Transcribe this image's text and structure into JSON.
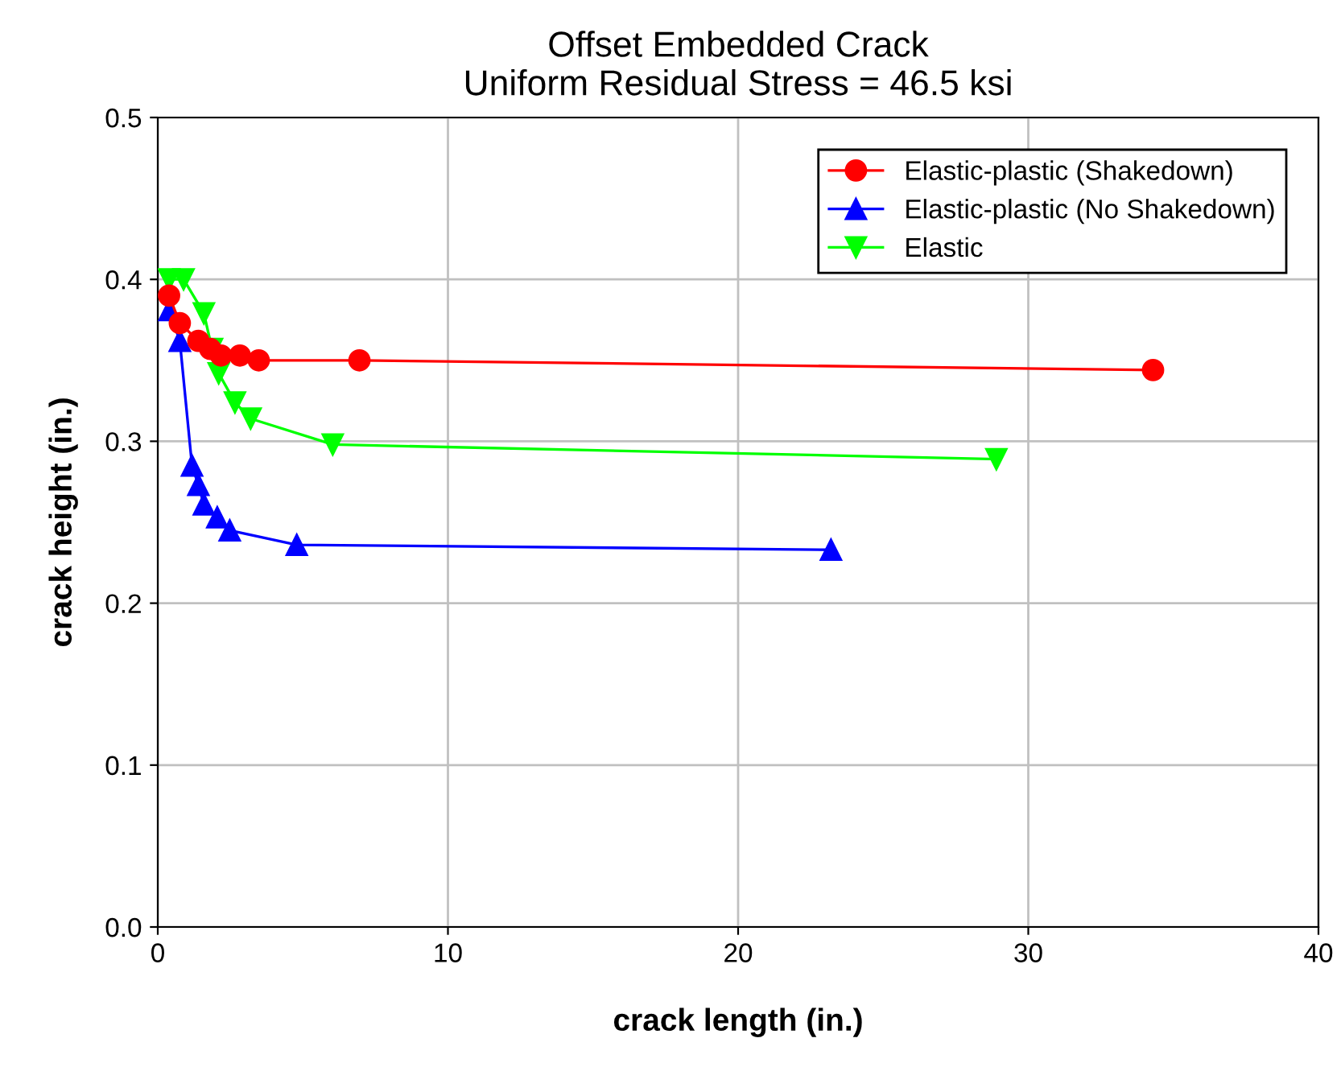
{
  "chart_data": {
    "type": "line",
    "title": "Offset Embedded Crack\nUniform Residual Stress = 46.5 ksi",
    "xlabel": "crack length (in.)",
    "ylabel": "crack height (in.)",
    "xlim": [
      0,
      40
    ],
    "xticks": [
      0,
      10,
      20,
      30,
      40
    ],
    "ylim": [
      0,
      0.5
    ],
    "yticks": [
      {
        "value": 0,
        "label": "0.0"
      },
      0.1,
      0.2,
      0.3,
      0.4,
      0.5
    ],
    "grid": true,
    "legend": "top right",
    "line_style": "solid",
    "series": [
      {
        "name": "Elastic-plastic (Shakedown)",
        "color": "#ff0000",
        "marker": "circle",
        "x": [
          0.39,
          0.76,
          1.4,
          1.81,
          2.18,
          2.83,
          3.48,
          6.95,
          34.3
        ],
        "values": [
          0.39,
          0.373,
          0.362,
          0.357,
          0.353,
          0.353,
          0.35,
          0.35,
          0.344
        ]
      },
      {
        "name": "Elastic-plastic (No Shakedown)",
        "color": "#0000ff",
        "marker": "triangle",
        "x": [
          0.4,
          0.76,
          1.18,
          1.4,
          1.59,
          2.05,
          2.48,
          4.79,
          23.2
        ],
        "values": [
          0.381,
          0.362,
          0.285,
          0.273,
          0.261,
          0.253,
          0.245,
          0.236,
          0.233
        ]
      },
      {
        "name": "Elastic",
        "color": "#00ff00",
        "marker": "triangle_down",
        "x": [
          0.39,
          0.89,
          1.59,
          1.87,
          2.1,
          2.66,
          3.2,
          6.03,
          28.9
        ],
        "values": [
          0.4,
          0.4,
          0.379,
          0.357,
          0.342,
          0.324,
          0.314,
          0.298,
          0.289
        ]
      }
    ]
  }
}
